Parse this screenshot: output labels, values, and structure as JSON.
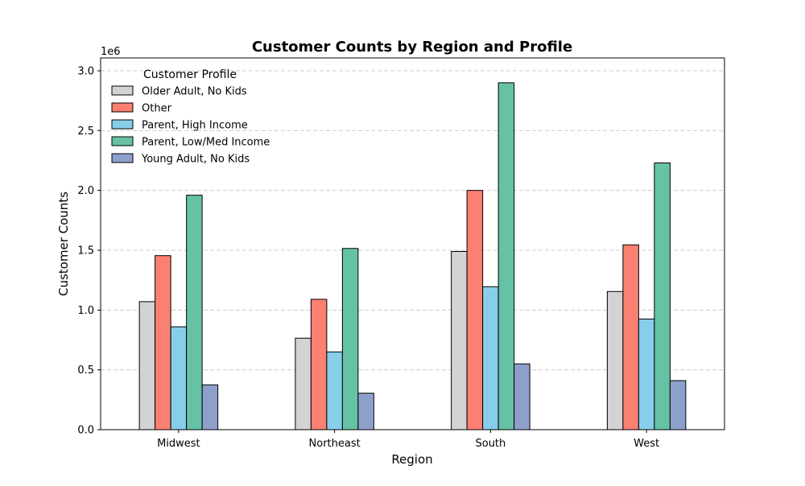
{
  "chart_data": {
    "type": "bar",
    "title": "Customer Counts by Region and Profile",
    "xlabel": "Region",
    "ylabel": "Customer Counts",
    "y_offset_text": "1e6",
    "categories": [
      "Midwest",
      "Northeast",
      "South",
      "West"
    ],
    "ylim": [
      0,
      3000000
    ],
    "yticks": [
      0,
      500000,
      1000000,
      1500000,
      2000000,
      2500000,
      3000000
    ],
    "ytick_labels": [
      "0.0",
      "0.5",
      "1.0",
      "1.5",
      "2.0",
      "2.5",
      "3.0"
    ],
    "grid": "y-dashed",
    "legend": {
      "title": "Customer Profile",
      "placement": "top-left"
    },
    "series": [
      {
        "name": "Older Adult, No Kids",
        "color": "#d3d3d3",
        "values": [
          1070000,
          765000,
          1490000,
          1155000
        ]
      },
      {
        "name": "Other",
        "color": "#fa8072",
        "values": [
          1455000,
          1090000,
          2000000,
          1545000
        ]
      },
      {
        "name": "Parent, High Income",
        "color": "#87ceeb",
        "values": [
          860000,
          650000,
          1195000,
          925000
        ]
      },
      {
        "name": "Parent, Low/Med Income",
        "color": "#66c2a5",
        "values": [
          1960000,
          1515000,
          2900000,
          2230000
        ]
      },
      {
        "name": "Young Adult, No Kids",
        "color": "#8da0cb",
        "values": [
          375000,
          305000,
          550000,
          410000
        ]
      }
    ]
  }
}
